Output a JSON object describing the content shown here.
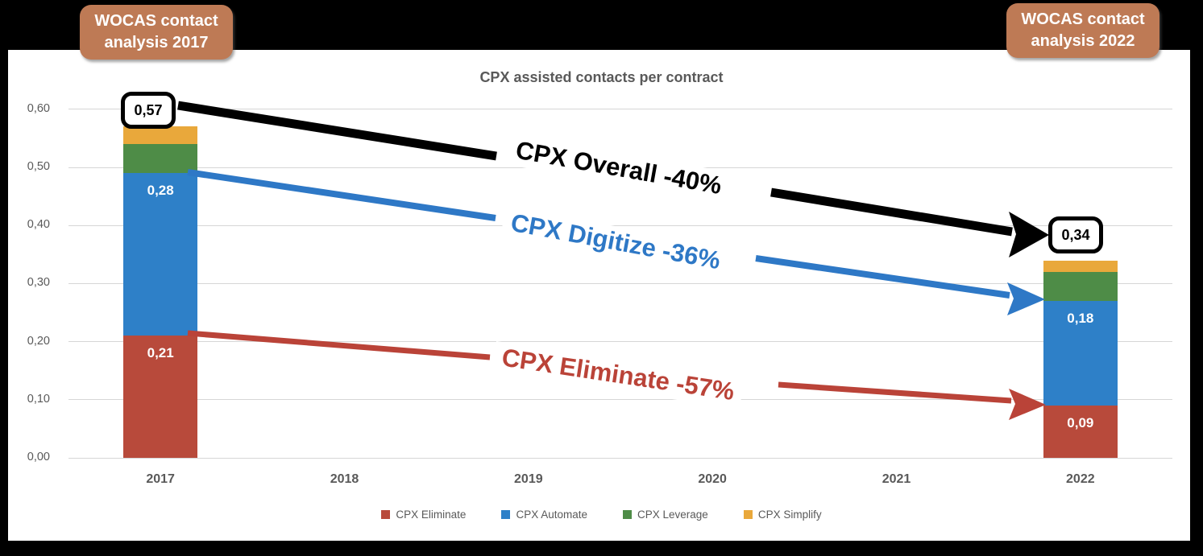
{
  "badges": {
    "left": "WOCAS contact analysis 2017",
    "right": "WOCAS contact analysis 2022"
  },
  "chart_data": {
    "type": "bar",
    "stacked": true,
    "title": "CPX assisted contacts per contract",
    "categories": [
      "2017",
      "2018",
      "2019",
      "2020",
      "2021",
      "2022"
    ],
    "series": [
      {
        "name": "CPX Eliminate",
        "color": "#B84A3B",
        "values": [
          0.21,
          null,
          null,
          null,
          null,
          0.09
        ],
        "labels": [
          "0,21",
          null,
          null,
          null,
          null,
          "0,09"
        ]
      },
      {
        "name": "CPX Automate",
        "color": "#2E80C8",
        "values": [
          0.28,
          null,
          null,
          null,
          null,
          0.18
        ],
        "labels": [
          "0,28",
          null,
          null,
          null,
          null,
          "0,18"
        ]
      },
      {
        "name": "CPX Leverage",
        "color": "#4E8C47",
        "values": [
          0.05,
          null,
          null,
          null,
          null,
          0.05
        ],
        "labels": [
          null,
          null,
          null,
          null,
          null,
          null
        ]
      },
      {
        "name": "CPX Simplify",
        "color": "#E9A83B",
        "values": [
          0.03,
          null,
          null,
          null,
          null,
          0.02
        ],
        "labels": [
          null,
          null,
          null,
          null,
          null,
          null
        ]
      }
    ],
    "totals": {
      "2017": 0.57,
      "2022": 0.34
    },
    "y_ticks": [
      "0,00",
      "0,10",
      "0,20",
      "0,30",
      "0,40",
      "0,50",
      "0,60"
    ],
    "ylim": [
      0,
      0.6
    ],
    "grid": true,
    "legend_position": "bottom"
  },
  "callouts": {
    "start": "0,57",
    "end": "0,34"
  },
  "annotations": [
    {
      "label": "CPX Overall -40%",
      "color": "#000000"
    },
    {
      "label": "CPX Digitize -36%",
      "color": "#2E78C6"
    },
    {
      "label": "CPX Eliminate -57%",
      "color": "#BA4338"
    }
  ]
}
